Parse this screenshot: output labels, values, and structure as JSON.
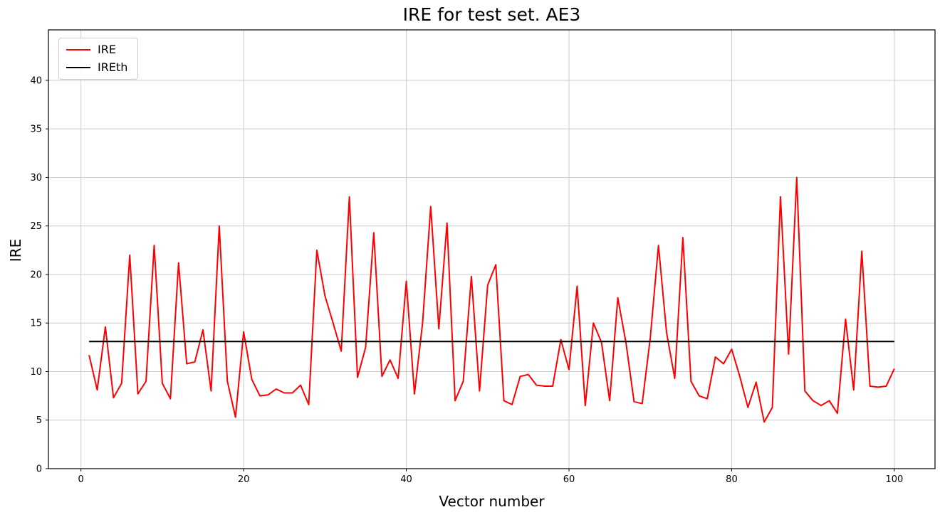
{
  "title": "IRE for test set. AE3",
  "chart_data": {
    "type": "line",
    "title": "IRE for test set. AE3",
    "xlabel": "Vector number",
    "ylabel": "IRE",
    "xlim": [
      -4.0,
      105.0
    ],
    "ylim": [
      0,
      45.2
    ],
    "xticks": [
      0,
      20,
      40,
      60,
      80,
      100
    ],
    "yticks": [
      0,
      5,
      10,
      15,
      20,
      25,
      30,
      35,
      40
    ],
    "grid": true,
    "legend_position": "upper left",
    "colors": {
      "grid": "#cccccc",
      "axes": "#000000",
      "ire": "#ff0000",
      "ireth": "#000000"
    },
    "series": [
      {
        "name": "IRE",
        "color": "#ff0000",
        "x_start": 1,
        "x_step": 1,
        "values": [
          11.7,
          8.1,
          14.6,
          7.3,
          8.8,
          22.0,
          7.7,
          9.0,
          23.0,
          8.8,
          7.2,
          21.2,
          10.8,
          11.0,
          14.3,
          8.0,
          25.0,
          9.0,
          5.3,
          14.1,
          9.2,
          7.5,
          7.6,
          8.2,
          7.8,
          7.8,
          8.6,
          6.6,
          22.5,
          17.8,
          15.0,
          12.1,
          28.0,
          9.4,
          12.5,
          24.3,
          9.5,
          11.2,
          9.3,
          19.3,
          7.7,
          15.0,
          27.0,
          14.4,
          25.3,
          7.0,
          9.0,
          19.8,
          8.0,
          18.9,
          21.0,
          7.0,
          6.6,
          9.5,
          9.7,
          8.6,
          8.5,
          8.5,
          13.3,
          10.2,
          18.8,
          6.5,
          15.0,
          13.0,
          7.0,
          17.6,
          13.0,
          6.9,
          6.7,
          13.5,
          23.0,
          14.0,
          9.3,
          23.8,
          9.0,
          7.5,
          7.2,
          11.5,
          10.8,
          12.3,
          9.5,
          6.3,
          8.9,
          4.8,
          6.3,
          28.0,
          11.8,
          30.0,
          8.0,
          7.0,
          6.5,
          7.0,
          5.7,
          15.4,
          8.1,
          22.4,
          8.5,
          8.4,
          8.5,
          10.3
        ]
      },
      {
        "name": "IREth",
        "color": "#000000",
        "type": "hline",
        "value": 13.1,
        "x_range": [
          1,
          100
        ]
      }
    ]
  }
}
